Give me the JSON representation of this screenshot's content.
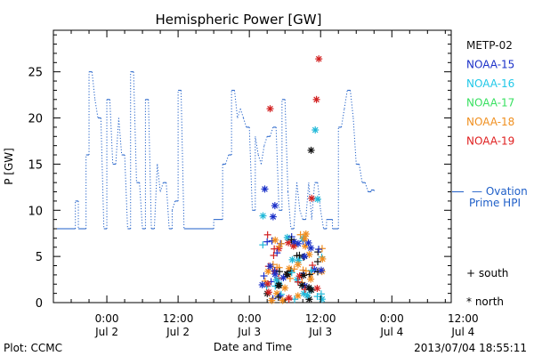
{
  "chart_data": {
    "type": "line",
    "title": "Hemispheric Power [GW]",
    "xlabel": "Date and Time",
    "ylabel": "P [GW]",
    "ylim": [
      0,
      29.5
    ],
    "xlim": [
      -9,
      58
    ],
    "x_unit": "hours since 2013-07-02 00:00",
    "yticks": [
      0,
      5,
      10,
      15,
      20,
      25
    ],
    "xticks": [
      {
        "x": 0,
        "time": "0:00",
        "date": "Jul 2"
      },
      {
        "x": 12,
        "time": "12:00",
        "date": "Jul 2"
      },
      {
        "x": 24,
        "time": "0:00",
        "date": "Jul 3"
      },
      {
        "x": 36,
        "time": "12:00",
        "date": "Jul 3"
      },
      {
        "x": 48,
        "time": "0:00",
        "date": "Jul 4"
      },
      {
        "x": 60,
        "time": "12:00",
        "date": "Jul 4"
      }
    ],
    "ovation": {
      "name_line1": "Ovation",
      "name_line2": "Prime HPI",
      "color": "#1f5fc8",
      "points": [
        [
          -9,
          8
        ],
        [
          -5.3,
          8
        ],
        [
          -5.3,
          11
        ],
        [
          -4.8,
          11
        ],
        [
          -4.8,
          8
        ],
        [
          -3.5,
          8
        ],
        [
          -3.5,
          16
        ],
        [
          -3,
          16
        ],
        [
          -3,
          25
        ],
        [
          -2.5,
          25
        ],
        [
          -2,
          22
        ],
        [
          -1.5,
          20
        ],
        [
          -1,
          20
        ],
        [
          -0.5,
          8
        ],
        [
          0,
          8
        ],
        [
          0,
          22
        ],
        [
          0.5,
          22
        ],
        [
          1,
          15
        ],
        [
          1.5,
          15
        ],
        [
          2,
          20
        ],
        [
          2.5,
          16
        ],
        [
          3,
          16
        ],
        [
          3.5,
          8
        ],
        [
          4,
          8
        ],
        [
          4,
          25
        ],
        [
          4.5,
          25
        ],
        [
          5,
          13
        ],
        [
          5.5,
          13
        ],
        [
          6,
          8
        ],
        [
          6.5,
          8
        ],
        [
          6.5,
          22
        ],
        [
          7,
          22
        ],
        [
          7.5,
          8
        ],
        [
          8,
          8
        ],
        [
          8.5,
          15
        ],
        [
          9,
          12
        ],
        [
          9.5,
          13
        ],
        [
          10,
          13
        ],
        [
          10.5,
          8
        ],
        [
          11,
          8
        ],
        [
          11,
          10
        ],
        [
          11.5,
          11
        ],
        [
          12,
          11
        ],
        [
          12,
          23
        ],
        [
          12.5,
          23
        ],
        [
          13,
          8
        ],
        [
          18,
          8
        ],
        [
          18,
          9
        ],
        [
          19.5,
          9
        ],
        [
          19.5,
          15
        ],
        [
          20,
          15
        ],
        [
          20.5,
          16
        ],
        [
          21,
          16
        ],
        [
          21,
          23
        ],
        [
          21.5,
          23
        ],
        [
          22,
          20
        ],
        [
          22.5,
          21
        ],
        [
          23,
          20
        ],
        [
          23.5,
          19
        ],
        [
          24,
          19
        ],
        [
          24.5,
          10
        ],
        [
          25,
          10
        ],
        [
          25,
          18
        ],
        [
          25.5,
          16
        ],
        [
          26,
          15
        ],
        [
          26.5,
          17
        ],
        [
          27,
          18
        ],
        [
          27.5,
          18
        ],
        [
          28,
          19
        ],
        [
          28.5,
          19
        ],
        [
          29,
          10
        ],
        [
          29.5,
          10
        ],
        [
          29.5,
          22
        ],
        [
          30,
          22
        ],
        [
          30.5,
          12
        ],
        [
          31,
          8
        ],
        [
          31.5,
          8
        ],
        [
          32,
          13
        ],
        [
          32.5,
          10
        ],
        [
          33,
          9
        ],
        [
          33.5,
          9
        ],
        [
          34,
          13
        ],
        [
          34.5,
          9
        ],
        [
          35,
          13
        ],
        [
          35.5,
          13
        ],
        [
          36,
          10
        ],
        [
          36.5,
          8
        ],
        [
          37,
          8
        ],
        [
          37,
          9
        ],
        [
          38,
          9
        ],
        [
          38,
          8
        ],
        [
          39,
          8
        ],
        [
          39,
          19
        ],
        [
          39.5,
          19
        ],
        [
          40,
          21
        ],
        [
          40.5,
          23
        ],
        [
          41,
          23
        ],
        [
          41.5,
          20
        ],
        [
          42,
          15
        ],
        [
          42.5,
          15
        ],
        [
          43,
          13
        ],
        [
          43.5,
          13
        ],
        [
          44,
          12
        ],
        [
          44.5,
          12
        ],
        [
          44.5,
          12.2
        ],
        [
          45,
          12.2
        ],
        [
          45,
          12
        ]
      ]
    },
    "sat_markers": [
      {
        "name": "NOAA-19",
        "color": "#d22020",
        "type": "star",
        "points": [
          [
            27.5,
            21.0
          ],
          [
            34.5,
            11.3
          ],
          [
            35.3,
            22.0
          ],
          [
            35.7,
            26.4
          ]
        ]
      },
      {
        "name": "NOAA-16",
        "color": "#20b8d8",
        "type": "star",
        "points": [
          [
            35.1,
            18.7
          ],
          [
            35.5,
            11.2
          ]
        ]
      },
      {
        "name": "METP-02",
        "color": "#111111",
        "type": "star",
        "points": [
          [
            34.4,
            16.5
          ]
        ]
      },
      {
        "name": "NOAA-15",
        "color": "#1a30c8",
        "type": "star",
        "points": [
          [
            26.6,
            12.3
          ],
          [
            28.0,
            9.3
          ],
          [
            28.3,
            10.5
          ]
        ]
      },
      {
        "name": "NOAA-16",
        "color": "#20b8d8",
        "type": "star",
        "points": [
          [
            26.3,
            9.4
          ]
        ]
      }
    ],
    "cluster": {
      "x_range": [
        26.0,
        36.5
      ],
      "y_range": [
        0.2,
        7.5
      ],
      "colors": [
        "#111111",
        "#1a30c8",
        "#20b8d8",
        "#f08c1e",
        "#d22020"
      ]
    },
    "legend": {
      "placement": "right",
      "entries": [
        {
          "name": "METP-02",
          "color": "#111111"
        },
        {
          "name": "NOAA-15",
          "color": "#1a30c8"
        },
        {
          "name": "NOAA-16",
          "color": "#20c8e8"
        },
        {
          "name": "NOAA-17",
          "color": "#38e060"
        },
        {
          "name": "NOAA-18",
          "color": "#f09020"
        },
        {
          "name": "NOAA-19",
          "color": "#e02020"
        }
      ],
      "south_label": "+ south",
      "north_label": "* north"
    },
    "grid": false
  },
  "footer": {
    "left": "Plot: CCMC",
    "right": "2013/07/04 18:55:11"
  }
}
